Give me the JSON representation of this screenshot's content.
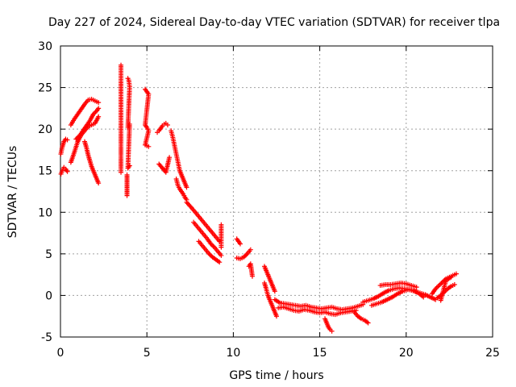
{
  "chart_data": {
    "type": "scatter",
    "title": "Day 227 of 2024, Sidereal Day-to-day VTEC variation (SDTVAR) for receiver tlpa",
    "xlabel": "GPS time / hours",
    "ylabel": "SDTVAR / TECUs",
    "xlim": [
      0,
      25
    ],
    "ylim": [
      -5,
      30
    ],
    "xticks": [
      0,
      5,
      10,
      15,
      20,
      25
    ],
    "yticks": [
      -5,
      0,
      5,
      10,
      15,
      20,
      25,
      30
    ],
    "grid": true,
    "marker": "+",
    "color": "#ff0000",
    "series": [
      {
        "name": "SDTVAR",
        "segments": [
          {
            "x": [
              0.02,
              0.1,
              0.2,
              0.3,
              0.4
            ],
            "y": [
              17.0,
              17.8,
              18.5,
              18.8,
              18.7
            ]
          },
          {
            "x": [
              0.03,
              0.1,
              0.2,
              0.3,
              0.4
            ],
            "y": [
              14.6,
              15.0,
              15.4,
              15.2,
              14.9
            ]
          },
          {
            "x": [
              0.6,
              0.8,
              1.0,
              1.2,
              1.4,
              1.6,
              1.8,
              2.0,
              2.2
            ],
            "y": [
              16.0,
              17.2,
              18.5,
              19.3,
              19.8,
              20.3,
              20.5,
              20.7,
              21.5
            ]
          },
          {
            "x": [
              0.6,
              0.8,
              1.0,
              1.2,
              1.4,
              1.6,
              1.8,
              2.0,
              2.2
            ],
            "y": [
              20.5,
              21.2,
              21.8,
              22.4,
              23.0,
              23.5,
              23.6,
              23.4,
              23.2
            ]
          },
          {
            "x": [
              0.9,
              1.1,
              1.3,
              1.5,
              1.7,
              1.9,
              2.1,
              2.2
            ],
            "y": [
              18.8,
              19.2,
              19.8,
              20.4,
              21.0,
              21.8,
              22.2,
              22.5
            ]
          },
          {
            "x": [
              1.4,
              1.5,
              1.6,
              1.7,
              1.8,
              1.9,
              2.0,
              2.1,
              2.2
            ],
            "y": [
              18.5,
              17.8,
              16.9,
              16.2,
              15.5,
              15.0,
              14.5,
              14.0,
              13.5
            ]
          },
          {
            "x": [
              3.5,
              3.5,
              3.5,
              3.5
            ],
            "y": [
              27.7,
              24.8,
              22.3,
              14.8
            ]
          },
          {
            "x": [
              3.9,
              3.95,
              4.0,
              3.9,
              4.0,
              3.9,
              4.0
            ],
            "y": [
              26.1,
              25.9,
              25.1,
              20.2,
              20.6,
              15.3,
              15.6
            ]
          },
          {
            "x": [
              3.85,
              3.85,
              3.85,
              3.85,
              3.85,
              3.85
            ],
            "y": [
              14.5,
              14.0,
              13.5,
              13.0,
              12.5,
              12.0
            ]
          },
          {
            "x": [
              4.9,
              5.0,
              5.1,
              4.9,
              5.0,
              5.1,
              4.9,
              5.0,
              5.1
            ],
            "y": [
              24.8,
              24.5,
              24.2,
              20.5,
              20.2,
              19.8,
              18.1,
              18.0,
              17.9
            ]
          },
          {
            "x": [
              5.6,
              5.7,
              5.8,
              5.9,
              6.0,
              6.1,
              6.2
            ],
            "y": [
              19.6,
              19.8,
              20.1,
              20.4,
              20.6,
              20.7,
              20.5
            ]
          },
          {
            "x": [
              6.4,
              6.5,
              6.6,
              6.7,
              6.8,
              6.9,
              7.0,
              7.1,
              7.2,
              7.3
            ],
            "y": [
              19.8,
              19.0,
              18.0,
              17.0,
              16.0,
              15.0,
              14.5,
              14.0,
              13.5,
              13.0
            ]
          },
          {
            "x": [
              6.7,
              6.8,
              6.9,
              7.0,
              7.1,
              7.2,
              7.3
            ],
            "y": [
              14.0,
              13.2,
              12.8,
              12.5,
              12.2,
              11.8,
              11.5
            ]
          },
          {
            "x": [
              5.7,
              6.1,
              6.3
            ],
            "y": [
              15.8,
              14.8,
              16.6
            ]
          },
          {
            "x": [
              7.3,
              7.6,
              7.8,
              8.0,
              8.2,
              8.4,
              8.6,
              8.8,
              9.0,
              9.2
            ],
            "y": [
              11.2,
              10.5,
              10.0,
              9.5,
              9.0,
              8.5,
              8.0,
              7.5,
              7.0,
              6.5
            ]
          },
          {
            "x": [
              7.7,
              7.9,
              8.1,
              8.3,
              8.5,
              8.7,
              8.9,
              9.1,
              9.3
            ],
            "y": [
              8.8,
              8.3,
              7.8,
              7.3,
              6.8,
              6.2,
              5.8,
              5.3,
              4.8
            ]
          },
          {
            "x": [
              8.0,
              8.2,
              8.4,
              8.6,
              8.8,
              9.0,
              9.2
            ],
            "y": [
              6.5,
              6.0,
              5.5,
              5.0,
              4.6,
              4.3,
              4.0
            ]
          },
          {
            "x": [
              9.3,
              9.3,
              9.3
            ],
            "y": [
              8.5,
              7.0,
              5.8
            ]
          },
          {
            "x": [
              10.2,
              10.3,
              10.4
            ],
            "y": [
              6.8,
              6.5,
              6.2
            ]
          },
          {
            "x": [
              10.2,
              10.4,
              10.6,
              10.8,
              11.0
            ],
            "y": [
              4.5,
              4.4,
              4.6,
              5.0,
              5.5
            ]
          },
          {
            "x": [
              10.9,
              11.0,
              11.1
            ],
            "y": [
              3.5,
              3.8,
              2.3
            ]
          },
          {
            "x": [
              11.8,
              11.9,
              12.0,
              12.1,
              12.2,
              12.3,
              12.4
            ],
            "y": [
              3.5,
              3.0,
              2.5,
              2.0,
              1.5,
              1.0,
              0.5
            ]
          },
          {
            "x": [
              11.8,
              11.9,
              12.0,
              12.1,
              12.2,
              12.3,
              12.4,
              12.5
            ],
            "y": [
              1.5,
              0.8,
              0.0,
              -0.5,
              -1.0,
              -1.5,
              -2.0,
              -2.5
            ]
          },
          {
            "x": [
              12.4,
              12.7,
              13.0,
              13.3,
              13.6,
              13.9,
              14.2,
              14.5,
              14.8,
              15.1,
              15.4,
              15.7,
              16.0,
              16.3,
              16.6,
              16.9,
              17.2,
              17.5
            ],
            "y": [
              -0.5,
              -0.9,
              -1.0,
              -1.1,
              -1.2,
              -1.3,
              -1.2,
              -1.4,
              -1.5,
              -1.6,
              -1.5,
              -1.4,
              -1.6,
              -1.7,
              -1.6,
              -1.5,
              -1.3,
              -1.1
            ]
          },
          {
            "x": [
              12.6,
              12.9,
              13.2,
              13.5,
              13.8,
              14.1,
              14.4,
              14.7,
              15.0,
              15.3,
              15.6,
              15.9,
              16.2,
              16.5,
              16.8,
              17.1
            ],
            "y": [
              -1.5,
              -1.4,
              -1.6,
              -1.8,
              -1.9,
              -1.7,
              -1.8,
              -2.0,
              -2.1,
              -2.0,
              -2.2,
              -2.3,
              -2.1,
              -2.0,
              -1.9,
              -1.8
            ]
          },
          {
            "x": [
              15.3,
              15.4,
              15.5,
              15.6,
              15.7
            ],
            "y": [
              -2.8,
              -3.3,
              -3.8,
              -4.1,
              -4.3
            ]
          },
          {
            "x": [
              17.0,
              17.2,
              17.4,
              17.6,
              17.8
            ],
            "y": [
              -2.0,
              -2.5,
              -2.8,
              -3.0,
              -3.3
            ]
          },
          {
            "x": [
              17.5,
              17.8,
              18.1,
              18.4,
              18.7,
              19.0,
              19.3,
              19.6,
              19.9,
              20.2,
              20.5,
              20.8,
              21.1,
              21.4,
              21.7
            ],
            "y": [
              -0.8,
              -0.6,
              -0.4,
              -0.1,
              0.3,
              0.6,
              0.8,
              0.9,
              0.8,
              0.7,
              0.5,
              0.3,
              0.1,
              -0.2,
              -0.5
            ]
          },
          {
            "x": [
              18.0,
              18.3,
              18.6,
              18.9,
              19.2,
              19.5,
              19.8,
              20.1,
              20.4,
              20.7,
              21.0
            ],
            "y": [
              -1.2,
              -1.0,
              -0.8,
              -0.5,
              -0.2,
              0.2,
              0.5,
              0.7,
              0.6,
              0.3,
              -0.2
            ]
          },
          {
            "x": [
              18.5,
              18.8,
              19.1,
              19.4,
              19.7,
              20.0,
              20.3,
              20.6
            ],
            "y": [
              1.2,
              1.3,
              1.3,
              1.4,
              1.5,
              1.4,
              1.2,
              1.0
            ]
          },
          {
            "x": [
              21.5,
              21.7,
              21.9,
              22.1,
              22.3,
              22.5,
              22.7,
              22.9
            ],
            "y": [
              0.2,
              0.8,
              1.2,
              1.6,
              2.0,
              2.2,
              2.4,
              2.6
            ]
          },
          {
            "x": [
              21.8,
              22.0,
              22.2,
              22.4,
              22.6,
              22.8
            ],
            "y": [
              -0.3,
              0.0,
              0.4,
              0.8,
              1.1,
              1.3
            ]
          },
          {
            "x": [
              22.0,
              22.3,
              22.6
            ],
            "y": [
              -0.6,
              1.8,
              2.2
            ]
          }
        ]
      }
    ]
  }
}
